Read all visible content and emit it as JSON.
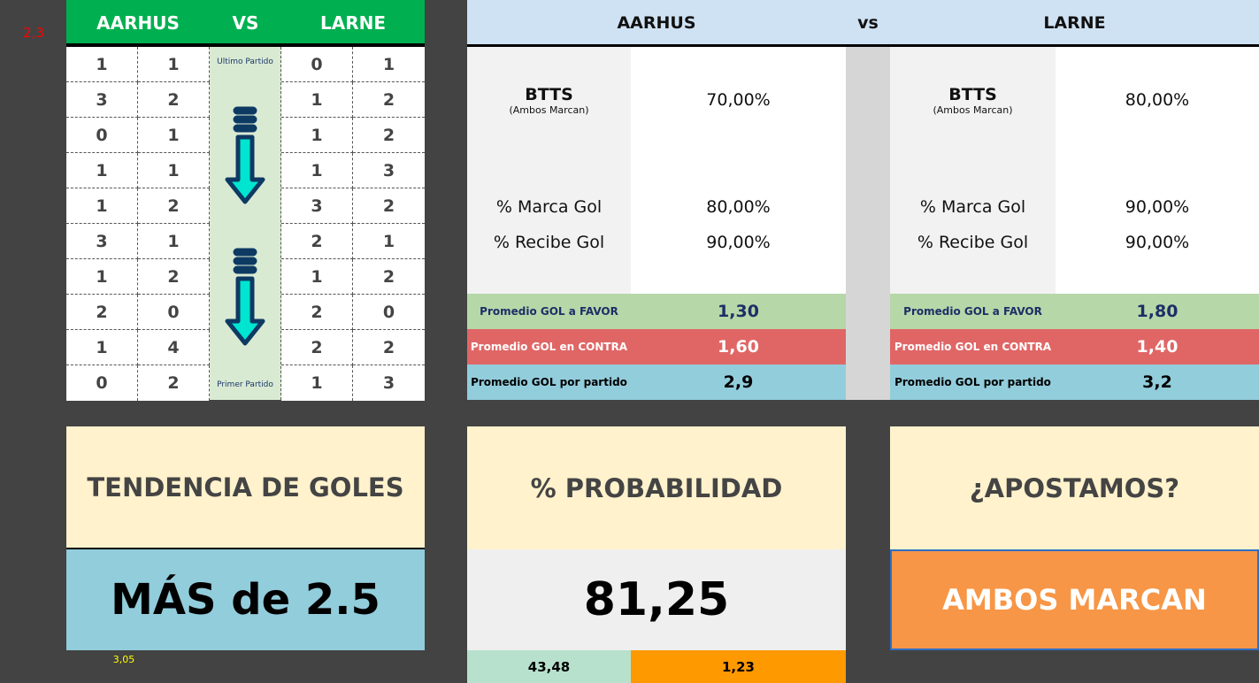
{
  "corner_value": "2,3",
  "left": {
    "home": "AARHUS",
    "vs": "VS",
    "away": "LARNE",
    "rows": [
      [
        "1",
        "1",
        "0",
        "1"
      ],
      [
        "3",
        "2",
        "1",
        "2"
      ],
      [
        "0",
        "1",
        "1",
        "2"
      ],
      [
        "1",
        "1",
        "1",
        "3"
      ],
      [
        "1",
        "2",
        "3",
        "2"
      ],
      [
        "3",
        "1",
        "2",
        "1"
      ],
      [
        "1",
        "2",
        "1",
        "2"
      ],
      [
        "2",
        "0",
        "2",
        "0"
      ],
      [
        "1",
        "4",
        "2",
        "2"
      ],
      [
        "0",
        "2",
        "1",
        "3"
      ]
    ],
    "last_label": "Ultimo Partido",
    "first_label": "Primer Partido"
  },
  "right": {
    "home": "AARHUS",
    "vs": "vs",
    "away": "LARNE",
    "btts_label": "BTTS",
    "btts_sub": "(Ambos Marcan)",
    "marca_label": "% Marca Gol",
    "recibe_label": "% Recibe Gol",
    "favor_label": "Promedio GOL a FAVOR",
    "contra_label": "Promedio GOL en CONTRA",
    "partido_label": "Promedio GOL por partido",
    "home_stats": {
      "btts": "70,00%",
      "marca": "80,00%",
      "recibe": "90,00%",
      "favor": "1,30",
      "contra": "1,60",
      "partido": "2,9"
    },
    "away_stats": {
      "btts": "80,00%",
      "marca": "90,00%",
      "recibe": "90,00%",
      "favor": "1,80",
      "contra": "1,40",
      "partido": "3,2"
    }
  },
  "bottom": {
    "tendencia_title": "TENDENCIA DE GOLES",
    "tendencia_value": "MÁS de 2.5",
    "tendencia_note": "3,05",
    "prob_title": "% PROBABILIDAD",
    "prob_value": "81,25",
    "prob_sub1": "43,48",
    "prob_sub2": "1,23",
    "bet_title": "¿APOSTAMOS?",
    "bet_value": "AMBOS MARCAN"
  },
  "colors": {
    "green_header": "#00b050",
    "favor": "#b6d7a8",
    "contra": "#e06666",
    "partido": "#92cddc",
    "bet": "#f79646"
  }
}
